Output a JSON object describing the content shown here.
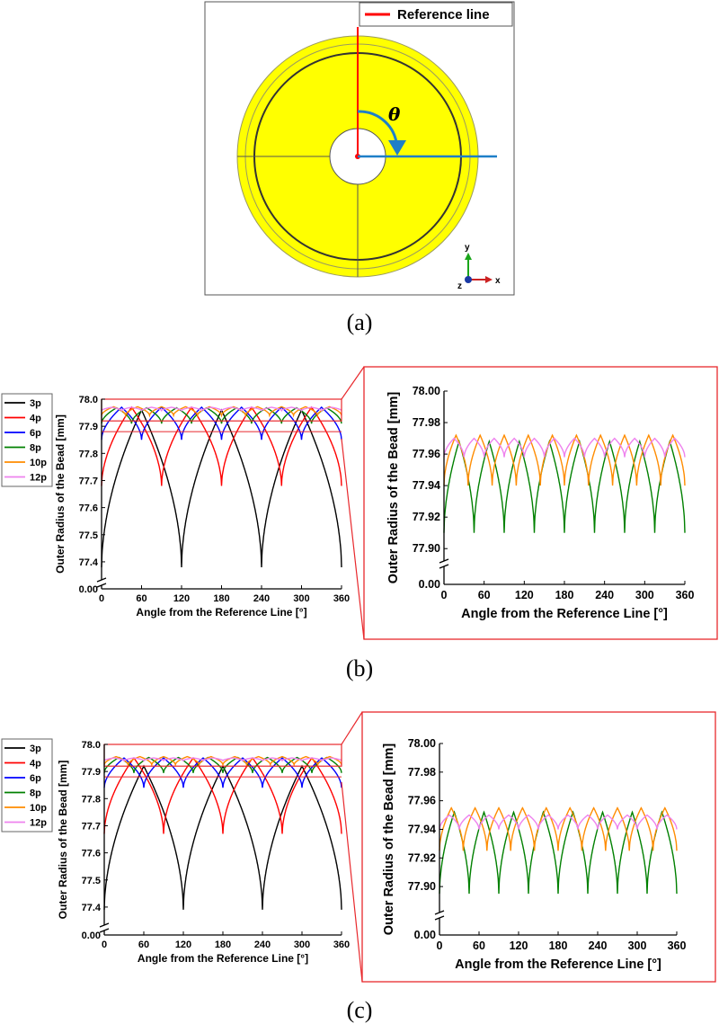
{
  "panel_labels": {
    "a": "(a)",
    "b": "(b)",
    "c": "(c)"
  },
  "figure_a": {
    "legend_label": "Reference line",
    "theta_symbol": "θ",
    "axis_triad": {
      "y": "y",
      "x": "x",
      "z": "z"
    },
    "colors": {
      "disk": "#ffff00",
      "reference_line": "#ff0000",
      "theta_arrow": "#1e7fc8"
    }
  },
  "colors": {
    "3p": "#000000",
    "4p": "#ff0000",
    "6p": "#0000ff",
    "8p": "#008000",
    "10p": "#ff8c00",
    "12p": "#ee82ee",
    "zoom_box": "#e8282c"
  },
  "chart_data": [
    {
      "id": "b-full",
      "type": "line",
      "xlabel": "Angle from the Reference Line [°]",
      "ylabel": "Outer Radius of the Bead [mm]",
      "xlim": [
        0,
        360
      ],
      "xticks": [
        "0",
        "60",
        "120",
        "180",
        "240",
        "300",
        "360"
      ],
      "ylim": [
        77.35,
        78.0
      ],
      "yticks": [
        "0.00",
        "77.4",
        "77.5",
        "77.6",
        "77.7",
        "77.8",
        "77.9",
        "78.0"
      ],
      "y_axis_break": true,
      "legend": [
        "3p",
        "4p",
        "6p",
        "8p",
        "10p",
        "12p"
      ],
      "series": [
        {
          "name": "3p",
          "period": 120,
          "max": 77.96,
          "min": 77.38,
          "shape": "cusp"
        },
        {
          "name": "4p",
          "period": 90,
          "max": 77.97,
          "min": 77.68,
          "shape": "cusp"
        },
        {
          "name": "6p",
          "period": 60,
          "max": 77.97,
          "min": 77.85,
          "shape": "cusp"
        },
        {
          "name": "8p",
          "period": 45,
          "max": 77.968,
          "min": 77.91,
          "shape": "cusp"
        },
        {
          "name": "10p",
          "period": 36,
          "max": 77.972,
          "min": 77.94,
          "shape": "cusp"
        },
        {
          "name": "12p",
          "period": 30,
          "max": 77.97,
          "min": 77.958,
          "shape": "cusp"
        }
      ],
      "reference_line_y": 77.88
    },
    {
      "id": "b-zoom",
      "type": "line",
      "xlabel": "Angle from the Reference Line [°]",
      "ylabel": "Outer Radius of the Bead [mm]",
      "xlim": [
        0,
        360
      ],
      "xticks": [
        "0",
        "60",
        "120",
        "180",
        "240",
        "300",
        "360"
      ],
      "ylim": [
        77.895,
        78.0
      ],
      "yticks": [
        "0.00",
        "77.90",
        "77.92",
        "77.94",
        "77.96",
        "77.98",
        "78.00"
      ],
      "y_axis_break": true,
      "series": [
        {
          "name": "8p",
          "period": 45,
          "max": 77.968,
          "min": 77.91,
          "shape": "cusp"
        },
        {
          "name": "10p",
          "period": 36,
          "max": 77.972,
          "min": 77.94,
          "shape": "cusp"
        },
        {
          "name": "12p",
          "period": 30,
          "max": 77.97,
          "min": 77.958,
          "shape": "cusp"
        }
      ]
    },
    {
      "id": "c-full",
      "type": "line",
      "xlabel": "Angle from the Reference Line [°]",
      "ylabel": "Outer Radius of the Bead [mm]",
      "xlim": [
        0,
        360
      ],
      "xticks": [
        "0",
        "60",
        "120",
        "180",
        "240",
        "300",
        "360"
      ],
      "ylim": [
        77.35,
        78.0
      ],
      "yticks": [
        "0.00",
        "77.4",
        "77.5",
        "77.6",
        "77.7",
        "77.8",
        "77.9",
        "78.0"
      ],
      "y_axis_break": true,
      "legend": [
        "3p",
        "4p",
        "6p",
        "8p",
        "10p",
        "12p"
      ],
      "series": [
        {
          "name": "3p",
          "period": 120,
          "max": 77.92,
          "min": 77.39,
          "shape": "cusp"
        },
        {
          "name": "4p",
          "period": 90,
          "max": 77.95,
          "min": 77.67,
          "shape": "cusp"
        },
        {
          "name": "6p",
          "period": 60,
          "max": 77.95,
          "min": 77.84,
          "shape": "cusp"
        },
        {
          "name": "8p",
          "period": 45,
          "max": 77.952,
          "min": 77.895,
          "shape": "cusp"
        },
        {
          "name": "10p",
          "period": 36,
          "max": 77.955,
          "min": 77.925,
          "shape": "cusp"
        },
        {
          "name": "12p",
          "period": 30,
          "max": 77.95,
          "min": 77.94,
          "shape": "cusp"
        }
      ],
      "reference_line_y": 77.88
    },
    {
      "id": "c-zoom",
      "type": "line",
      "xlabel": "Angle from the Reference Line [°]",
      "ylabel": "Outer Radius of the Bead [mm]",
      "xlim": [
        0,
        360
      ],
      "xticks": [
        "0",
        "60",
        "120",
        "180",
        "240",
        "300",
        "360"
      ],
      "ylim": [
        77.885,
        78.0
      ],
      "yticks": [
        "0.00",
        "77.90",
        "77.92",
        "77.94",
        "77.96",
        "77.98",
        "78.00"
      ],
      "y_axis_break": true,
      "series": [
        {
          "name": "8p",
          "period": 45,
          "max": 77.952,
          "min": 77.895,
          "shape": "cusp"
        },
        {
          "name": "10p",
          "period": 36,
          "max": 77.955,
          "min": 77.925,
          "shape": "cusp"
        },
        {
          "name": "12p",
          "period": 30,
          "max": 77.95,
          "min": 77.94,
          "shape": "cusp"
        }
      ]
    }
  ]
}
